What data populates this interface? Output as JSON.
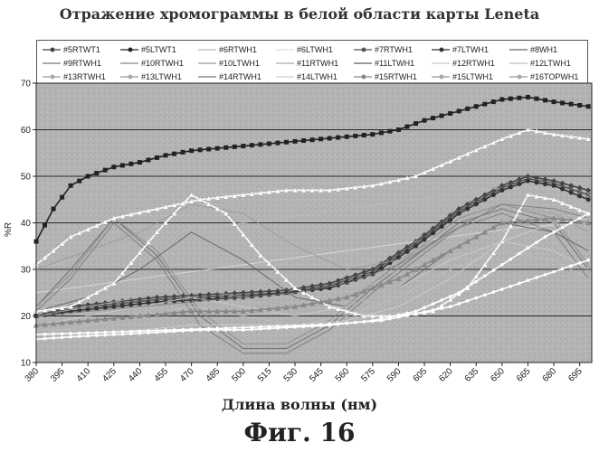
{
  "chart_data": {
    "type": "line",
    "title": "Отражение хромограммы в белой области карты Leneta",
    "xlabel": "Длина волны (нм)",
    "ylabel": "%R",
    "figure_label": "Фиг. 16",
    "xlim": [
      380,
      702
    ],
    "ylim": [
      10,
      70
    ],
    "xticks": [
      380,
      395,
      410,
      425,
      440,
      455,
      470,
      485,
      500,
      515,
      530,
      545,
      560,
      575,
      590,
      605,
      620,
      635,
      650,
      665,
      680,
      695
    ],
    "yticks": [
      10,
      20,
      30,
      40,
      50,
      60,
      70
    ],
    "grid": "horizontal",
    "legend_position": "top",
    "series": [
      {
        "name": "#5RTWT1",
        "color": "#444444",
        "marker": "diamond",
        "x": [
          380,
          400,
          425,
          450,
          475,
          500,
          525,
          550,
          575,
          600,
          625,
          650,
          665,
          680,
          700
        ],
        "y": [
          20,
          22,
          23,
          24,
          24.5,
          25,
          25.5,
          27,
          30,
          36,
          43,
          48,
          50,
          49,
          47
        ]
      },
      {
        "name": "#5LTWT1",
        "color": "#222222",
        "marker": "square",
        "x": [
          380,
          390,
          400,
          410,
          425,
          440,
          455,
          470,
          485,
          500,
          515,
          530,
          545,
          560,
          575,
          590,
          605,
          620,
          635,
          650,
          665,
          680,
          700
        ],
        "y": [
          36,
          43,
          48,
          50,
          52,
          53,
          54.5,
          55.5,
          56,
          56.5,
          57,
          57.5,
          58,
          58.5,
          59,
          60,
          62,
          63.5,
          65,
          66.5,
          67,
          66,
          65
        ]
      },
      {
        "name": "#6RTWH1",
        "color": "#bbbbbb",
        "marker": "none",
        "x": [
          380,
          420,
          460,
          500,
          540,
          580,
          620,
          660,
          700
        ],
        "y": [
          30,
          34,
          38,
          40,
          42,
          44,
          46,
          48,
          46
        ]
      },
      {
        "name": "#6LTWH1",
        "color": "#dddddd",
        "marker": "none",
        "x": [
          380,
          420,
          460,
          500,
          540,
          580,
          620,
          660,
          700
        ],
        "y": [
          25,
          27,
          29,
          31,
          33,
          35,
          37,
          39,
          40
        ]
      },
      {
        "name": "#7RTWH1",
        "color": "#555555",
        "marker": "x",
        "x": [
          380,
          400,
          425,
          450,
          475,
          500,
          525,
          550,
          575,
          600,
          625,
          650,
          665,
          680,
          700
        ],
        "y": [
          20,
          21.5,
          22.5,
          23.5,
          24,
          24.5,
          25,
          26.5,
          29.5,
          35.5,
          42.5,
          47.5,
          49.5,
          48.5,
          46
        ]
      },
      {
        "name": "#7LTWH1",
        "color": "#333333",
        "marker": "circle",
        "x": [
          380,
          400,
          425,
          450,
          475,
          500,
          525,
          550,
          575,
          600,
          625,
          650,
          665,
          680,
          700
        ],
        "y": [
          20,
          21,
          22,
          23,
          23.5,
          24,
          25,
          26,
          29,
          35,
          42,
          47,
          49,
          48,
          45
        ]
      },
      {
        "name": "#8WH1",
        "color": "#666666",
        "marker": "none",
        "x": [
          380,
          400,
          425,
          450,
          475,
          500,
          525,
          550,
          575,
          600,
          625,
          650,
          680,
          700
        ],
        "y": [
          22,
          30,
          41,
          33,
          20,
          13,
          13,
          18,
          26,
          33,
          40,
          43,
          40,
          30
        ]
      },
      {
        "name": "#9RTWH1",
        "color": "#777777",
        "marker": "none",
        "x": [
          380,
          400,
          425,
          450,
          475,
          500,
          525,
          550,
          575,
          600,
          625,
          650,
          680,
          700
        ],
        "y": [
          21,
          28,
          40,
          32,
          18,
          12,
          12,
          17,
          25,
          32,
          39,
          42,
          38,
          28
        ]
      },
      {
        "name": "#10RTWH1",
        "color": "#888888",
        "marker": "none",
        "x": [
          380,
          400,
          425,
          450,
          475,
          500,
          525,
          550,
          575,
          600,
          625,
          650,
          680,
          700
        ],
        "y": [
          22,
          29,
          41,
          34,
          21,
          14,
          14,
          19,
          27,
          34,
          41,
          44,
          41,
          31
        ]
      },
      {
        "name": "#10LTWH1",
        "color": "#999999",
        "marker": "none",
        "x": [
          380,
          410,
          440,
          470,
          500,
          530,
          560,
          590,
          620,
          650,
          680,
          700
        ],
        "y": [
          30,
          34,
          38,
          44,
          42,
          35,
          30,
          32,
          38,
          44,
          42,
          38
        ]
      },
      {
        "name": "#11RTWH1",
        "color": "#aaaaaa",
        "marker": "none",
        "x": [
          380,
          410,
          440,
          470,
          500,
          530,
          560,
          590,
          620,
          650,
          680,
          700
        ],
        "y": [
          20,
          22,
          24,
          26,
          24,
          22,
          24,
          30,
          38,
          44,
          42,
          40
        ]
      },
      {
        "name": "#11LTWH1",
        "color": "#5a5a5a",
        "marker": "none",
        "x": [
          380,
          410,
          440,
          470,
          500,
          530,
          560,
          590,
          620,
          650,
          680,
          700
        ],
        "y": [
          21,
          24,
          30,
          38,
          32,
          24,
          22,
          26,
          34,
          40,
          38,
          34
        ]
      },
      {
        "name": "#12RTWH1",
        "color": "#cccccc",
        "marker": "none",
        "x": [
          380,
          410,
          440,
          470,
          500,
          530,
          560,
          590,
          620,
          650,
          680,
          700
        ],
        "y": [
          18,
          20,
          22,
          24,
          22,
          20,
          22,
          26,
          32,
          36,
          34,
          30
        ]
      },
      {
        "name": "#12LTWH1",
        "color": "#bfbfbf",
        "marker": "none",
        "x": [
          380,
          410,
          440,
          470,
          500,
          530,
          560,
          590,
          620,
          650,
          680,
          700
        ],
        "y": [
          16,
          18,
          20,
          22,
          20,
          18,
          20,
          24,
          30,
          34,
          32,
          28
        ]
      },
      {
        "name": "#13RTWH1",
        "color": "#ffffff",
        "marker": "triangle",
        "x": [
          380,
          400,
          425,
          450,
          470,
          490,
          510,
          530,
          550,
          570,
          590,
          610,
          630,
          650,
          665,
          680,
          700
        ],
        "y": [
          21,
          22,
          27,
          38,
          46,
          42,
          33,
          26,
          22,
          20,
          20,
          21,
          26,
          36,
          46,
          45,
          42
        ]
      },
      {
        "name": "#13LTWH1",
        "color": "#ffffff",
        "marker": "triangle",
        "x": [
          380,
          400,
          425,
          450,
          475,
          500,
          525,
          550,
          575,
          600,
          625,
          650,
          665,
          680,
          700
        ],
        "y": [
          31,
          37,
          41,
          43,
          45,
          46,
          47,
          47,
          48,
          50,
          54,
          58,
          60,
          59,
          58
        ]
      },
      {
        "name": "#14RTWH1",
        "color": "#777777",
        "marker": "none",
        "x": [
          380,
          410,
          440,
          470,
          500,
          530,
          560,
          590,
          620,
          650,
          680,
          700
        ],
        "y": [
          20,
          21,
          22,
          23,
          24,
          25,
          27,
          31,
          38,
          44,
          43,
          41
        ]
      },
      {
        "name": "#14LTWH1",
        "color": "#cfcfcf",
        "marker": "none",
        "x": [
          380,
          410,
          440,
          470,
          500,
          530,
          560,
          590,
          620,
          650,
          680,
          700
        ],
        "y": [
          15,
          16,
          17,
          18,
          18,
          18,
          19,
          22,
          28,
          36,
          40,
          41
        ]
      },
      {
        "name": "#15RTWH1",
        "color": "#888888",
        "marker": "triangle",
        "x": [
          380,
          410,
          440,
          470,
          500,
          530,
          560,
          590,
          620,
          650,
          680,
          700
        ],
        "y": [
          18,
          19,
          20,
          21,
          21,
          22,
          24,
          28,
          34,
          40,
          41,
          40
        ]
      },
      {
        "name": "#15LTWH1",
        "color": "#ffffff",
        "marker": "dot",
        "x": [
          380,
          400,
          425,
          450,
          475,
          500,
          525,
          550,
          575,
          600,
          625,
          650,
          675,
          700
        ],
        "y": [
          15,
          15.5,
          16,
          16.5,
          17,
          17,
          17.5,
          18,
          19,
          21,
          25,
          31,
          37,
          42
        ]
      },
      {
        "name": "#16TOPWH1",
        "color": "#ffffff",
        "marker": "dot",
        "x": [
          380,
          420,
          460,
          500,
          540,
          580,
          620,
          660,
          700
        ],
        "y": [
          16,
          16.5,
          17,
          17.5,
          18,
          19,
          22,
          27,
          32
        ]
      }
    ]
  }
}
